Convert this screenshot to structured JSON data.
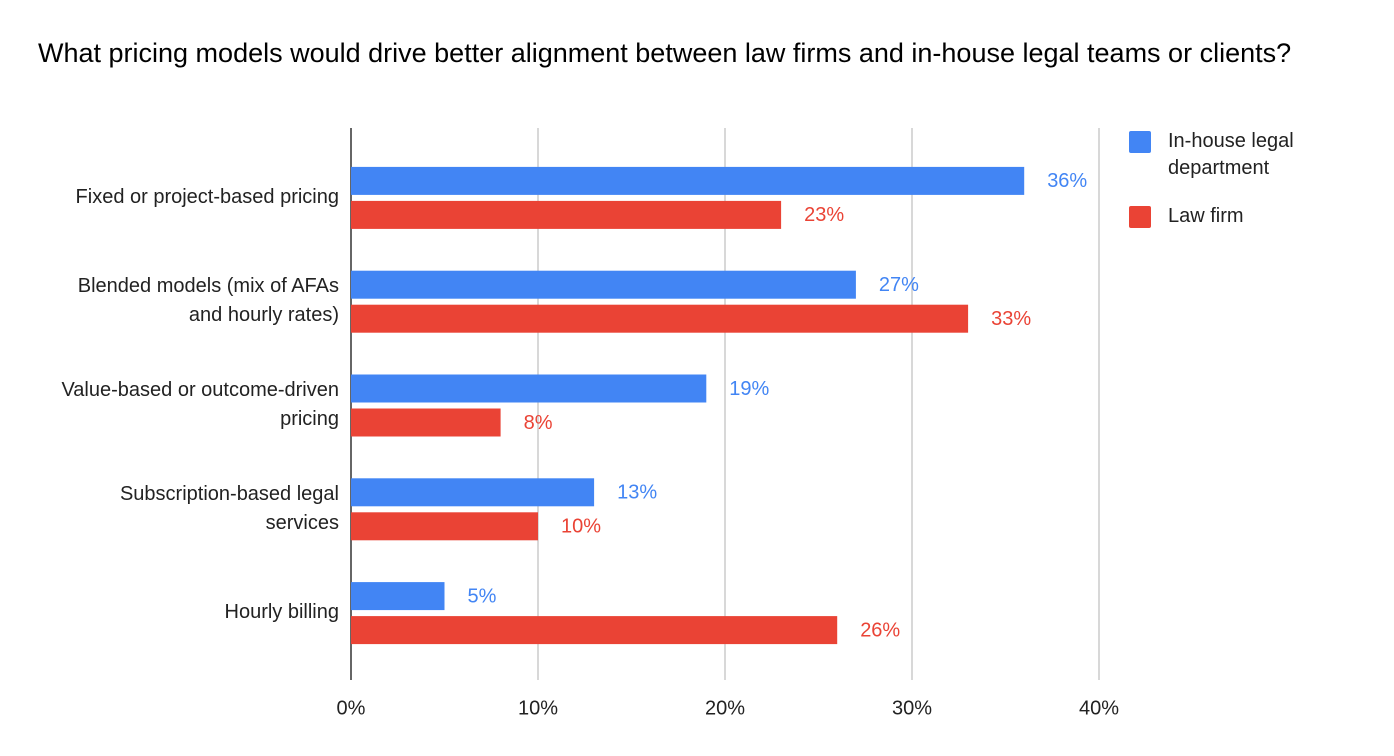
{
  "chart_data": {
    "type": "bar",
    "orientation": "horizontal",
    "title": "What pricing models would drive better alignment between law firms and in-house legal teams or clients?",
    "categories": [
      "Fixed or project-based pricing",
      "Blended models (mix of AFAs and hourly rates)",
      "Value-based or outcome-driven pricing",
      "Subscription-based legal services",
      "Hourly billing"
    ],
    "series": [
      {
        "name": "In-house legal department",
        "color": "#4285f4",
        "values": [
          36,
          27,
          19,
          13,
          5
        ],
        "value_labels": [
          "36%",
          "27%",
          "19%",
          "13%",
          "5%"
        ]
      },
      {
        "name": "Law firm",
        "color": "#ea4335",
        "values": [
          23,
          33,
          8,
          10,
          26
        ],
        "value_labels": [
          "23%",
          "33%",
          "8%",
          "10%",
          "26%"
        ]
      }
    ],
    "xlim": [
      0,
      40
    ],
    "xticks": [
      {
        "value": 0,
        "label": "0%"
      },
      {
        "value": 10,
        "label": "10%"
      },
      {
        "value": 20,
        "label": "20%"
      },
      {
        "value": 30,
        "label": "30%"
      },
      {
        "value": 40,
        "label": "40%"
      }
    ],
    "grid": true,
    "legend": "right"
  }
}
